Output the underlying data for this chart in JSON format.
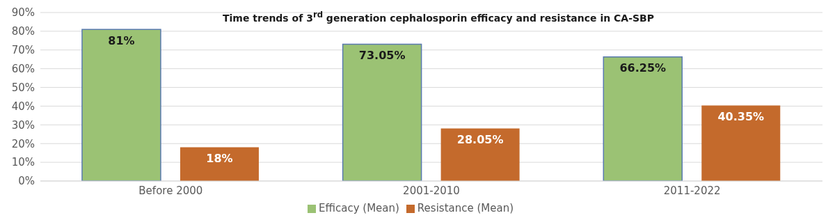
{
  "chart_data": {
    "type": "bar",
    "title": "Time trends of 3$^{rd}$ generation cephalosporin efficacy and resistance in CA-SBP",
    "categories": [
      "Before 2000",
      "2001-2010",
      "2011-2022"
    ],
    "series": [
      {
        "name": "Efficacy (Mean)",
        "color": "#9bc274",
        "values": [
          81,
          73.05,
          66.25
        ],
        "value_labels": [
          "81%",
          "73.05%",
          "66.25%"
        ]
      },
      {
        "name": "Resistance (Mean)",
        "color": "#c46a2c",
        "values": [
          18,
          28.05,
          40.35
        ],
        "value_labels": [
          "18%",
          "28.05%",
          "40.35%"
        ]
      }
    ],
    "ylim": [
      0,
      90
    ],
    "yticks": [
      {
        "value": 0,
        "label": "0%"
      },
      {
        "value": 10,
        "label": "10%"
      },
      {
        "value": 20,
        "label": "20%"
      },
      {
        "value": 30,
        "label": "30%"
      },
      {
        "value": 40,
        "label": "40%"
      },
      {
        "value": 50,
        "label": "50%"
      },
      {
        "value": 60,
        "label": "60%"
      },
      {
        "value": 70,
        "label": "70%"
      },
      {
        "value": 80,
        "label": "80%"
      },
      {
        "value": 90,
        "label": "90%"
      }
    ],
    "grid": "y",
    "legend": "bottom"
  }
}
